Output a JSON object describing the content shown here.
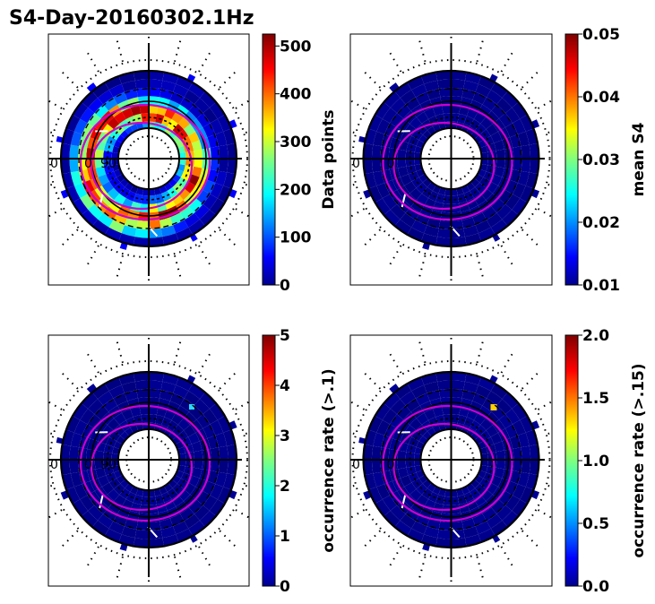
{
  "title": "S4-Day-20160302.1Hz",
  "colors": {
    "grid": "#000000",
    "contour": "#cc00cc",
    "background_bin": "#00008f"
  },
  "chart_data": [
    {
      "type": "heatmap",
      "projection": "polar",
      "colorbar": {
        "label": "Data points",
        "ticks": [
          "0",
          "100",
          "200",
          "300",
          "400",
          "500"
        ],
        "range": [
          0,
          525
        ],
        "colormap": "jet"
      },
      "map_labels": [
        "0",
        "0",
        "90"
      ]
    },
    {
      "type": "heatmap",
      "projection": "polar",
      "colorbar": {
        "label": "mean S4",
        "ticks": [
          "0.01",
          "0.02",
          "0.03",
          "0.04",
          "0.05"
        ],
        "range": [
          0.01,
          0.05
        ],
        "colormap": "jet"
      },
      "map_labels": [
        "0",
        "0"
      ]
    },
    {
      "type": "heatmap",
      "projection": "polar",
      "colorbar": {
        "label": "occurrence rate (>.1)",
        "ticks": [
          "0",
          "1",
          "2",
          "3",
          "4",
          "5"
        ],
        "range": [
          0,
          5
        ],
        "colormap": "jet"
      },
      "map_labels": [
        "0",
        "0",
        "90"
      ]
    },
    {
      "type": "heatmap",
      "projection": "polar",
      "colorbar": {
        "label": "occurrence rate (>.15)",
        "ticks": [
          "0.0",
          "0.5",
          "1.0",
          "1.5",
          "2.0"
        ],
        "range": [
          0,
          2
        ],
        "colormap": "jet"
      },
      "map_labels": [
        "0",
        "0"
      ]
    }
  ]
}
